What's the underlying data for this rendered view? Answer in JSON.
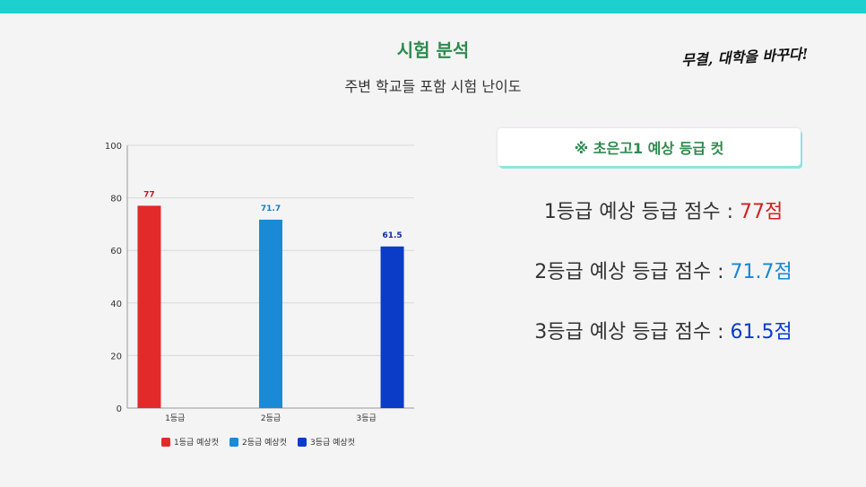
{
  "header": {
    "title": "시험 분석",
    "subtitle": "주변 학교들 포함 시험 난이도",
    "slogan": "무결, 대학을 바꾸다!"
  },
  "panel": {
    "box_label": "※ 초은고1 예상 등급 컷",
    "lines": [
      {
        "label": "1등급 예상 등급 점수 : ",
        "value": "77점",
        "color": "#d42020"
      },
      {
        "label": "2등급 예상 등급 점수 : ",
        "value": "71.7점",
        "color": "#1588d4"
      },
      {
        "label": "3등급 예상 등급 점수 : ",
        "value": "61.5점",
        "color": "#0a3cc8"
      }
    ]
  },
  "chart_data": {
    "type": "bar",
    "categories": [
      "1등급",
      "2등급",
      "3등급"
    ],
    "series": [
      {
        "name": "1등급 예상컷",
        "values": [
          77,
          null,
          null
        ],
        "color": "#e32a2a",
        "label_color": "#c41a1a"
      },
      {
        "name": "2등급 예상컷",
        "values": [
          null,
          71.7,
          null
        ],
        "color": "#1a8ad6",
        "label_color": "#1a7ac0"
      },
      {
        "name": "3등급 예상컷",
        "values": [
          null,
          null,
          61.5
        ],
        "color": "#0a3cc8",
        "label_color": "#0a2e9a"
      }
    ],
    "yticks": [
      0,
      20,
      40,
      60,
      80,
      100
    ],
    "ylim": [
      0,
      100
    ],
    "grid": true,
    "legend": "bottom"
  }
}
